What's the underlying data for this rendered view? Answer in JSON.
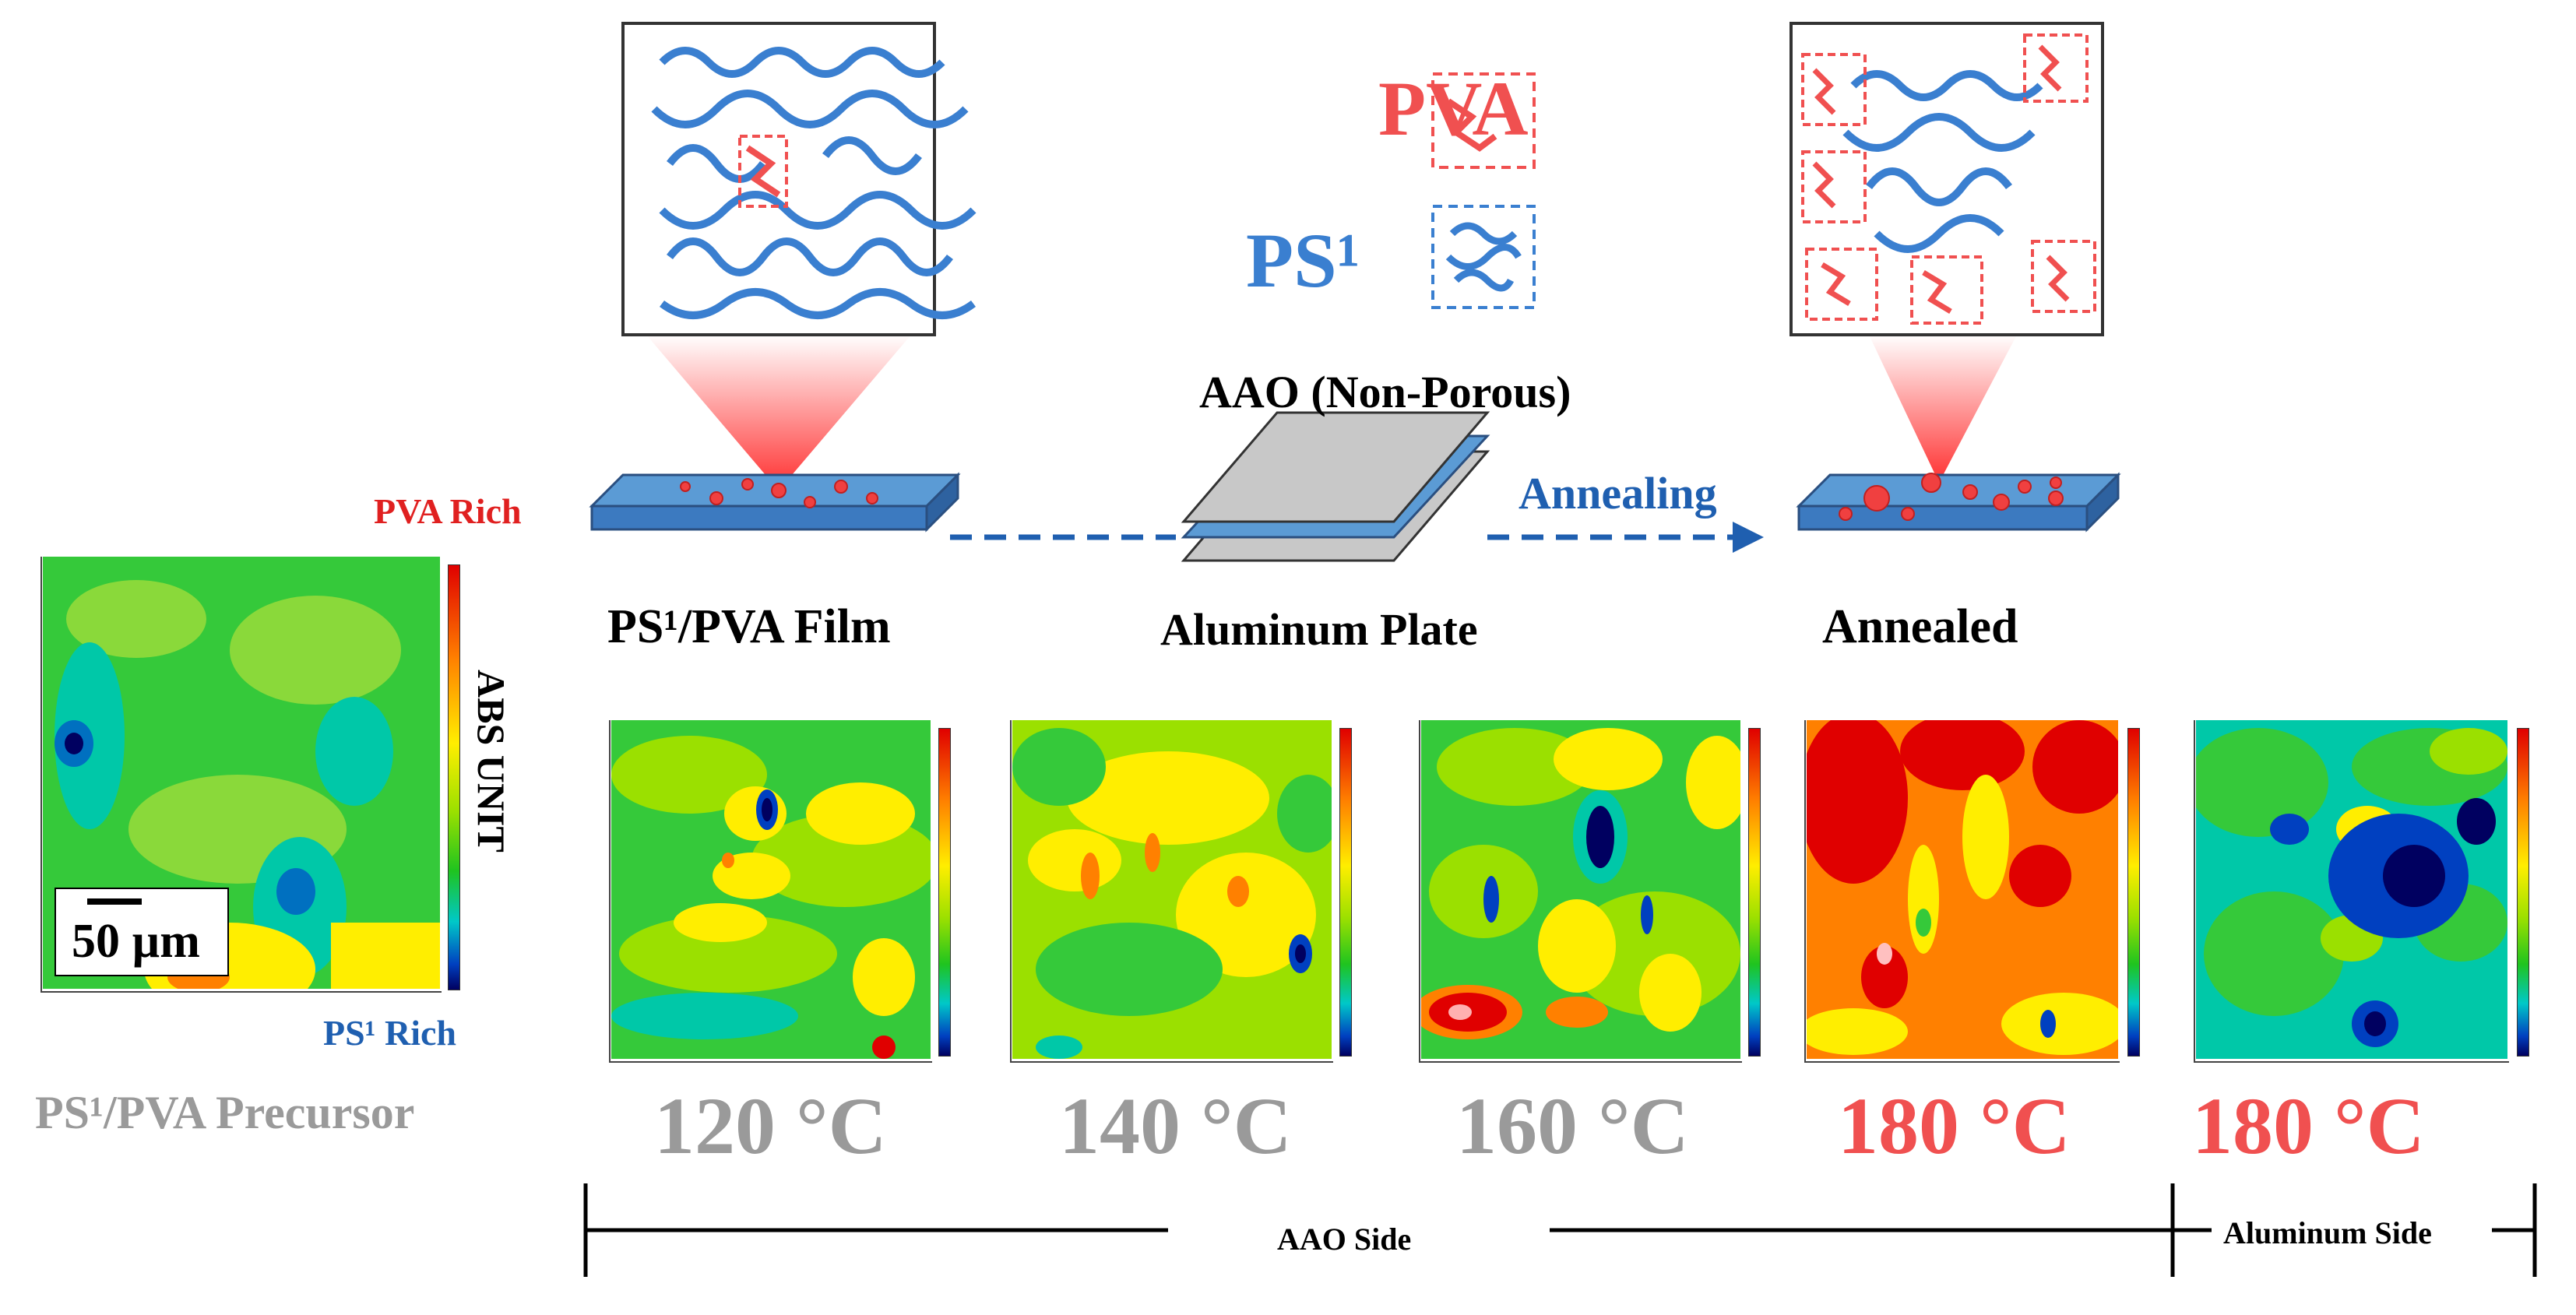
{
  "figure": {
    "title_labels": {
      "film": "PS¹/PVA Film",
      "aao": "AAO (Non-Porous)",
      "aluminum_plate": "Aluminum Plate",
      "annealing": "Annealing",
      "annealed": "Annealed"
    },
    "legend": {
      "pva": "PVA",
      "ps": "PS¹"
    },
    "precursor": {
      "pva_rich": "PVA Rich",
      "ps_rich": "PS¹ Rich",
      "scale_bar": "50 µm",
      "colorbar_label": "ABS UNIT",
      "caption": "PS¹/PVA Precursor"
    },
    "maps": [
      {
        "label": "120 °C",
        "temp": "120",
        "color": "#9a9a9a"
      },
      {
        "label": "140 °C",
        "temp": "140",
        "color": "#9a9a9a"
      },
      {
        "label": "160 °C",
        "temp": "160",
        "color": "#9a9a9a"
      },
      {
        "label": "180 °C",
        "temp": "180",
        "color": "#f05050"
      },
      {
        "label": "180 °C",
        "temp": "180",
        "color": "#f05050"
      }
    ],
    "sides": {
      "aao": "AAO Side",
      "aluminum": "Aluminum Side"
    },
    "colors": {
      "pva": "#f05050",
      "ps": "#3a7fd0",
      "arrow": "#1f5fb0",
      "gray_text": "#9a9a9a"
    }
  }
}
